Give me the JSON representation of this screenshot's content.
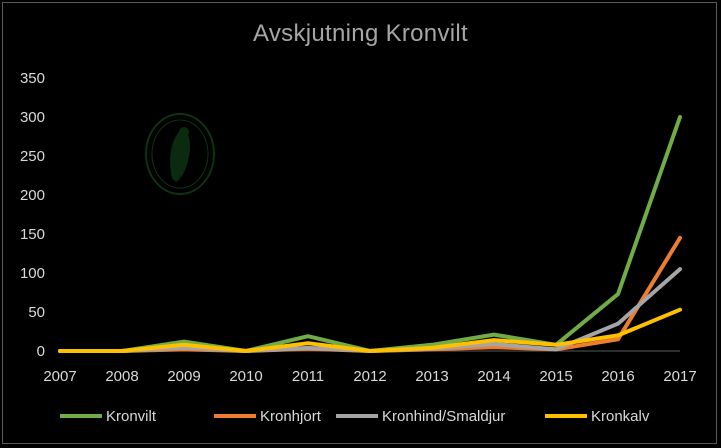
{
  "chart_data": {
    "type": "line",
    "title": "Avskjutning Kronvilt",
    "xlabel": "",
    "ylabel": "",
    "x": [
      "2007",
      "2008",
      "2009",
      "2010",
      "2011",
      "2012",
      "2013",
      "2014",
      "2015",
      "2016",
      "2017"
    ],
    "ylim": [
      0,
      350
    ],
    "yticks": [
      "0",
      "50",
      "100",
      "150",
      "200",
      "250",
      "300",
      "350"
    ],
    "grid": false,
    "legend_position": "bottom",
    "series": [
      {
        "name": "Kronvilt",
        "color": "#70AD47",
        "values": [
          0,
          0,
          12,
          0,
          19,
          0,
          8,
          21,
          8,
          73,
          300
        ]
      },
      {
        "name": "Kronhjort",
        "color": "#ED7D31",
        "values": [
          0,
          0,
          2,
          0,
          3,
          0,
          2,
          5,
          2,
          15,
          145
        ]
      },
      {
        "name": "Kronhind/Smaldjur",
        "color": "#A5A5A5",
        "values": [
          0,
          0,
          4,
          0,
          4,
          0,
          3,
          9,
          2,
          35,
          105
        ]
      },
      {
        "name": "Kronkalv",
        "color": "#FFC000",
        "values": [
          0,
          0,
          8,
          0,
          10,
          0,
          4,
          14,
          8,
          20,
          53
        ]
      }
    ]
  }
}
